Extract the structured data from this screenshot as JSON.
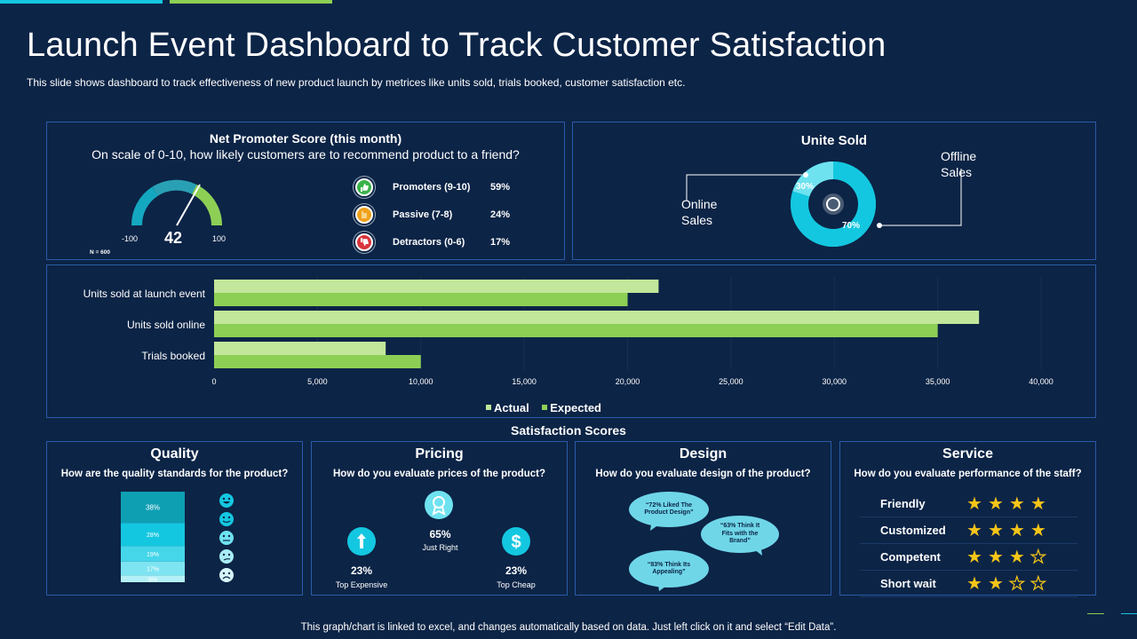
{
  "colors": {
    "background": "#0c2446",
    "panel_border": "#2a5ba8",
    "cyan": "#14c7e0",
    "light_cyan": "#6fe2f0",
    "green": "#8dcf55",
    "light_green": "#c2e69a",
    "star": "#f5c518"
  },
  "title": "Launch Event Dashboard to Track Customer Satisfaction",
  "subtitle": "This slide shows dashboard to track effectiveness of new product launch by metrices like units sold, trials booked, customer satisfaction etc.",
  "nps": {
    "title": "Net Promoter Score (this month)",
    "question": "On scale of 0-10, how likely customers are to recommend product to a friend?",
    "score": "42",
    "min": "-100",
    "max": "100",
    "n_label": "N = 600",
    "categories": [
      {
        "icon": "thumbs-up-icon",
        "label": "Promoters (9-10)",
        "value": "59%"
      },
      {
        "icon": "hand-icon",
        "label": "Passive (7-8)",
        "value": "24%"
      },
      {
        "icon": "thumbs-down-icon",
        "label": "Detractors (0-6)",
        "value": "17%"
      }
    ]
  },
  "units_sold": {
    "title": "Unite Sold",
    "online_label_1": "Online",
    "online_label_2": "Sales",
    "offline_label_1": "Offline",
    "offline_label_2": "Sales",
    "online_pct": "30%",
    "offline_pct": "70%"
  },
  "chart_data": {
    "type": "bar",
    "orientation": "horizontal",
    "categories": [
      "Units sold at launch event",
      "Units sold online",
      "Trials booked"
    ],
    "series": [
      {
        "name": "Actual",
        "values": [
          21500,
          37000,
          8300
        ]
      },
      {
        "name": "Expected",
        "values": [
          20000,
          35000,
          10000
        ]
      }
    ],
    "xlim": [
      0,
      40000
    ],
    "xticks": [
      "0",
      "5,000",
      "10,000",
      "15,000",
      "20,000",
      "25,000",
      "30,000",
      "35,000",
      "40,000"
    ],
    "grid": true,
    "legend_position": "bottom"
  },
  "satisfaction_title": "Satisfaction Scores",
  "quality": {
    "title": "Quality",
    "question": "How are the quality standards for the product?",
    "segments": [
      {
        "label": "38%",
        "value": 38
      },
      {
        "label": "28%",
        "value": 28
      },
      {
        "label": "19%",
        "value": 19
      },
      {
        "label": "17%",
        "value": 17
      },
      {
        "label": "8%",
        "value": 8
      }
    ]
  },
  "pricing": {
    "title": "Pricing",
    "question": "How do you evaluate prices of the product?",
    "just_right_value": "65%",
    "just_right_label": "Just Right",
    "expensive_value": "23%",
    "expensive_label": "Top Expensive",
    "cheap_value": "23%",
    "cheap_label": "Top Cheap"
  },
  "design": {
    "title": "Design",
    "question": "How do you evaluate design of the product?",
    "bubbles": [
      "“72% Liked The Product Design”",
      "“63% Think It Fits with the Brand”",
      "“83% Think Its Appealing”"
    ]
  },
  "service": {
    "title": "Service",
    "question": "How do you evaluate performance of the staff?",
    "rows": [
      {
        "label": "Friendly",
        "rating": 4
      },
      {
        "label": "Customized",
        "rating": 4
      },
      {
        "label": "Competent",
        "rating": 3
      },
      {
        "label": "Short wait",
        "rating": 2
      }
    ]
  },
  "footer": "This graph/chart is linked to excel,  and changes automatically based on data. Just left click on it and select “Edit Data”."
}
